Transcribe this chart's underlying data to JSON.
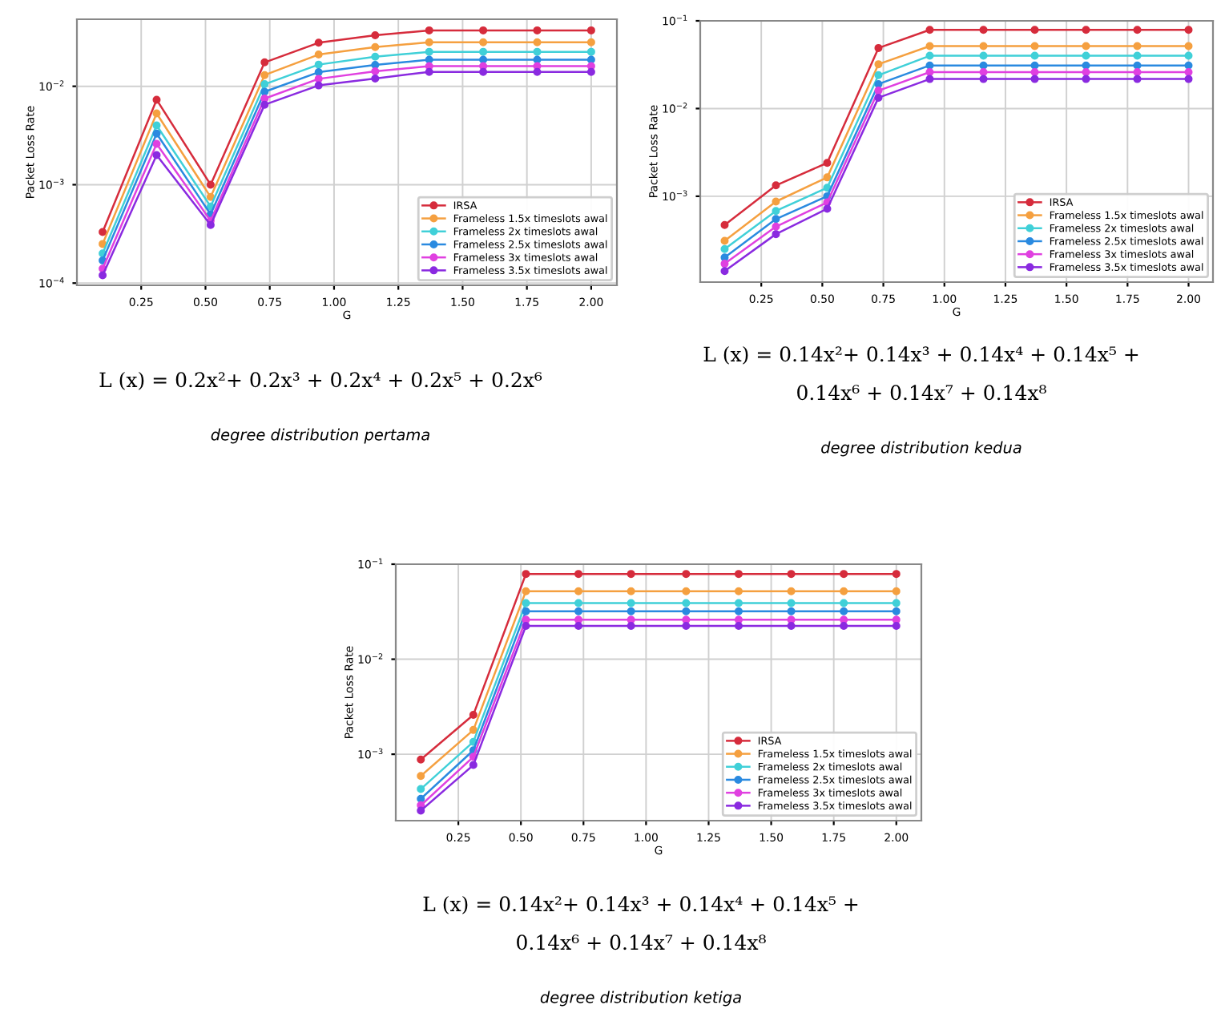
{
  "chart_data": [
    {
      "type": "line",
      "xlabel": "G",
      "ylabel": "Packet Loss Rate",
      "log": "y",
      "grid": true,
      "legend": "bottom right",
      "marker": "circle",
      "line_style": "solid",
      "x": [
        0.1,
        0.31,
        0.52,
        0.73,
        0.94,
        1.16,
        1.37,
        1.58,
        1.79,
        2.0
      ],
      "xlim": [
        0.0,
        2.1
      ],
      "xticks": [
        {
          "value": 0.25,
          "label": "0.25"
        },
        {
          "value": 0.5,
          "label": "0.50"
        },
        {
          "value": 0.75,
          "label": "0.75"
        },
        {
          "value": 1.0,
          "label": "1.00"
        },
        {
          "value": 1.25,
          "label": "1.25"
        },
        {
          "value": 1.5,
          "label": "1.50"
        },
        {
          "value": 1.75,
          "label": "1.75"
        },
        {
          "value": 2.0,
          "label": "2.00"
        }
      ],
      "ylim": [
        9.5e-05,
        0.048
      ],
      "yticks": [
        {
          "value": 0.0001,
          "label": "10$^{−4}$"
        },
        {
          "value": 0.001,
          "label": "10$^{−3}$"
        },
        {
          "value": 0.01,
          "label": "10$^{−2}$"
        }
      ],
      "series": [
        {
          "name": "IRSA",
          "color": "#d62c3c",
          "values": [
            0.00033,
            0.0073,
            0.001,
            0.0175,
            0.0277,
            0.033,
            0.037,
            0.037,
            0.037,
            0.037
          ]
        },
        {
          "name": "Frameless 1.5x timeslots awal",
          "color": "#f5a040",
          "values": [
            0.00025,
            0.0053,
            0.00075,
            0.013,
            0.021,
            0.025,
            0.028,
            0.028,
            0.028,
            0.028
          ]
        },
        {
          "name": "Frameless 2x timeslots awal",
          "color": "#40d0d8",
          "values": [
            0.0002,
            0.004,
            0.0006,
            0.0105,
            0.0166,
            0.02,
            0.0224,
            0.0224,
            0.0224,
            0.0224
          ]
        },
        {
          "name": "Frameless 2.5x timeslots awal",
          "color": "#2a8ae0",
          "values": [
            0.00017,
            0.0033,
            0.0005,
            0.0088,
            0.0139,
            0.0165,
            0.0186,
            0.0186,
            0.0186,
            0.0186
          ]
        },
        {
          "name": "Frameless 3x timeslots awal",
          "color": "#e040e0",
          "values": [
            0.00014,
            0.0026,
            0.00043,
            0.0075,
            0.0119,
            0.0142,
            0.016,
            0.016,
            0.016,
            0.016
          ]
        },
        {
          "name": "Frameless 3.5x timeslots awal",
          "color": "#8a2ae0",
          "values": [
            0.00012,
            0.002,
            0.00039,
            0.0065,
            0.0102,
            0.012,
            0.014,
            0.014,
            0.014,
            0.014
          ]
        }
      ],
      "annotations": [
        "L (x) = 0.2x²+ 0.2x³ + 0.2x⁴ + 0.2x⁵ + 0.2x⁶",
        "degree distribution pertama"
      ]
    },
    {
      "type": "line",
      "xlabel": "G",
      "ylabel": "Packet Loss Rate",
      "log": "y",
      "grid": true,
      "legend": "bottom right",
      "marker": "circle",
      "line_style": "solid",
      "x": [
        0.1,
        0.31,
        0.52,
        0.73,
        0.94,
        1.16,
        1.37,
        1.58,
        1.79,
        2.0
      ],
      "xlim": [
        0.0,
        2.1
      ],
      "xticks": [
        {
          "value": 0.25,
          "label": "0.25"
        },
        {
          "value": 0.5,
          "label": "0.50"
        },
        {
          "value": 0.75,
          "label": "0.75"
        },
        {
          "value": 1.0,
          "label": "1.00"
        },
        {
          "value": 1.25,
          "label": "1.25"
        },
        {
          "value": 1.5,
          "label": "1.50"
        },
        {
          "value": 1.75,
          "label": "1.75"
        },
        {
          "value": 2.0,
          "label": "2.00"
        }
      ],
      "ylim": [
        0.000105,
        0.1
      ],
      "yticks": [
        {
          "value": 0.001,
          "label": "10$^{−3}$"
        },
        {
          "value": 0.01,
          "label": "10$^{−2}$"
        },
        {
          "value": 0.1,
          "label": "10$^{−1}$"
        }
      ],
      "series": [
        {
          "name": "IRSA",
          "color": "#d62c3c",
          "values": [
            0.00047,
            0.00133,
            0.0024,
            0.049,
            0.079,
            0.079,
            0.079,
            0.079,
            0.079,
            0.079
          ]
        },
        {
          "name": "Frameless 1.5x timeslots awal",
          "color": "#f5a040",
          "values": [
            0.00031,
            0.00087,
            0.00164,
            0.032,
            0.0515,
            0.0515,
            0.0515,
            0.0515,
            0.0515,
            0.0515
          ]
        },
        {
          "name": "Frameless 2x timeslots awal",
          "color": "#40d0d8",
          "values": [
            0.00025,
            0.00068,
            0.00125,
            0.024,
            0.04,
            0.04,
            0.04,
            0.04,
            0.04,
            0.04
          ]
        },
        {
          "name": "Frameless 2.5x timeslots awal",
          "color": "#2a8ae0",
          "values": [
            0.0002,
            0.00055,
            0.001,
            0.019,
            0.031,
            0.031,
            0.031,
            0.031,
            0.031,
            0.031
          ]
        },
        {
          "name": "Frameless 3x timeslots awal",
          "color": "#e040e0",
          "values": [
            0.00017,
            0.00045,
            0.00085,
            0.016,
            0.026,
            0.026,
            0.026,
            0.026,
            0.026,
            0.026
          ]
        },
        {
          "name": "Frameless 3.5x timeslots awal",
          "color": "#8a2ae0",
          "values": [
            0.00014,
            0.00037,
            0.00072,
            0.0133,
            0.0217,
            0.0217,
            0.0217,
            0.0217,
            0.0217,
            0.0217
          ]
        }
      ],
      "annotations": [
        "L (x) = 0.14x²+ 0.14x³ + 0.14x⁴ + 0.14x⁵ +",
        "0.14x⁶ + 0.14x⁷ + 0.14x⁸",
        "degree distribution kedua"
      ]
    },
    {
      "type": "line",
      "xlabel": "G",
      "ylabel": "Packet Loss Rate",
      "log": "y",
      "grid": true,
      "legend": "bottom right",
      "marker": "circle",
      "line_style": "solid",
      "x": [
        0.1,
        0.31,
        0.52,
        0.73,
        0.94,
        1.16,
        1.37,
        1.58,
        1.79,
        2.0
      ],
      "xlim": [
        0.0,
        2.1
      ],
      "xticks": [
        {
          "value": 0.25,
          "label": "0.25"
        },
        {
          "value": 0.5,
          "label": "0.50"
        },
        {
          "value": 0.75,
          "label": "0.75"
        },
        {
          "value": 1.0,
          "label": "1.00"
        },
        {
          "value": 1.25,
          "label": "1.25"
        },
        {
          "value": 1.5,
          "label": "1.50"
        },
        {
          "value": 1.75,
          "label": "1.75"
        },
        {
          "value": 2.0,
          "label": "2.00"
        }
      ],
      "ylim": [
        0.0002,
        0.1
      ],
      "yticks": [
        {
          "value": 0.001,
          "label": "10$^{−3}$"
        },
        {
          "value": 0.01,
          "label": "10$^{−2}$"
        },
        {
          "value": 0.1,
          "label": "10$^{−1}$"
        }
      ],
      "series": [
        {
          "name": "IRSA",
          "color": "#d62c3c",
          "values": [
            0.00088,
            0.0026,
            0.079,
            0.079,
            0.079,
            0.079,
            0.079,
            0.079,
            0.079,
            0.079
          ]
        },
        {
          "name": "Frameless 1.5x timeslots awal",
          "color": "#f5a040",
          "values": [
            0.00059,
            0.0018,
            0.052,
            0.052,
            0.052,
            0.052,
            0.052,
            0.052,
            0.052,
            0.052
          ]
        },
        {
          "name": "Frameless 2x timeslots awal",
          "color": "#40d0d8",
          "values": [
            0.00043,
            0.00135,
            0.039,
            0.039,
            0.039,
            0.039,
            0.039,
            0.039,
            0.039,
            0.039
          ]
        },
        {
          "name": "Frameless 2.5x timeslots awal",
          "color": "#2a8ae0",
          "values": [
            0.00034,
            0.0011,
            0.032,
            0.032,
            0.032,
            0.032,
            0.032,
            0.032,
            0.032,
            0.032
          ]
        },
        {
          "name": "Frameless 3x timeslots awal",
          "color": "#e040e0",
          "values": [
            0.00029,
            0.00094,
            0.026,
            0.026,
            0.026,
            0.026,
            0.026,
            0.026,
            0.026,
            0.026
          ]
        },
        {
          "name": "Frameless 3.5x timeslots awal",
          "color": "#8a2ae0",
          "values": [
            0.000255,
            0.00077,
            0.0224,
            0.0224,
            0.0224,
            0.0224,
            0.0224,
            0.0224,
            0.0224,
            0.0224
          ]
        }
      ],
      "annotations": [
        "L (x) = 0.14x²+ 0.14x³ + 0.14x⁴ + 0.14x⁵ +",
        "0.14x⁶ + 0.14x⁷ + 0.14x⁸",
        "degree distribution ketiga"
      ]
    }
  ]
}
